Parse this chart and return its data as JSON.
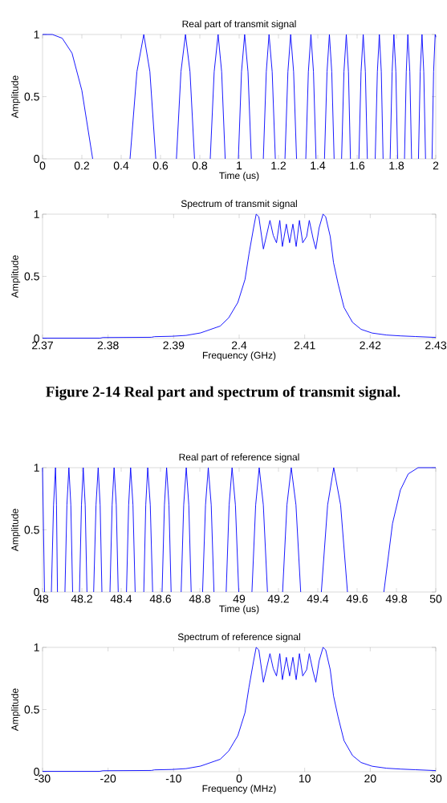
{
  "chart_data": [
    {
      "type": "line",
      "title": "Real part of transmit signal",
      "xlabel": "Time (us)",
      "ylabel": "Amplitude",
      "color": "#0000ff",
      "xlim": [
        0,
        2
      ],
      "ylim": [
        0,
        1
      ],
      "xticks": [
        0,
        0.2,
        0.4,
        0.6,
        0.8,
        1,
        1.2,
        1.4,
        1.6,
        1.8,
        2
      ],
      "yticks": [
        0,
        0.5,
        1
      ],
      "x": [
        0,
        0.05,
        0.1,
        0.15,
        0.2,
        0.255,
        0.35,
        0.445,
        0.48,
        0.515,
        0.546,
        0.576,
        0.63,
        0.681,
        0.704,
        0.727,
        0.75,
        0.773,
        0.81,
        0.853,
        0.873,
        0.893,
        0.911,
        0.929,
        0.96,
        0.996,
        1.012,
        1.028,
        1.045,
        1.062,
        1.09,
        1.123,
        1.138,
        1.152,
        1.168,
        1.184,
        1.21,
        1.233,
        1.248,
        1.262,
        1.277,
        1.292,
        1.315,
        1.339,
        1.352,
        1.365,
        1.378,
        1.391,
        1.41,
        1.434,
        1.447,
        1.459,
        1.471,
        1.483,
        1.5,
        1.521,
        1.533,
        1.545,
        1.556,
        1.566,
        1.59,
        1.609,
        1.62,
        1.631,
        1.642,
        1.652,
        1.67,
        1.692,
        1.703,
        1.713,
        1.723,
        1.732,
        1.75,
        1.768,
        1.778,
        1.787,
        1.797,
        1.806,
        1.82,
        1.841,
        1.85,
        1.858,
        1.868,
        1.877,
        1.89,
        1.912,
        1.921,
        1.93,
        1.939,
        1.948,
        1.96,
        1.981,
        1.989,
        1.997,
        2
      ],
      "values": [
        1,
        1,
        0.97,
        0.85,
        0.55,
        0,
        null,
        0,
        0.7,
        1,
        0.7,
        0,
        null,
        0,
        0.7,
        1,
        0.7,
        0,
        null,
        0,
        0.7,
        1,
        0.7,
        0,
        null,
        0,
        0.7,
        1,
        0.7,
        0,
        null,
        0,
        0.7,
        1,
        0.7,
        0,
        null,
        0,
        0.7,
        1,
        0.7,
        0,
        null,
        0,
        0.7,
        1,
        0.7,
        0,
        null,
        0,
        0.7,
        1,
        0.7,
        0,
        null,
        0,
        0.7,
        1,
        0.7,
        0,
        null,
        0,
        0.7,
        1,
        0.7,
        0,
        null,
        0,
        0.7,
        1,
        0.7,
        0,
        null,
        0,
        0.7,
        1,
        0.7,
        0,
        null,
        0,
        0.7,
        1,
        0.7,
        0,
        null,
        0,
        0.7,
        1,
        0.7,
        0,
        null,
        0,
        0.7,
        1,
        0.98
      ]
    },
    {
      "type": "line",
      "title": "Spectrum of transmit signal",
      "xlabel": "Frequency (GHz)",
      "ylabel": "Amplitude",
      "color": "#0000ff",
      "xlim": [
        2.37,
        2.43
      ],
      "ylim": [
        0,
        1
      ],
      "xticks": [
        2.37,
        2.38,
        2.39,
        2.4,
        2.41,
        2.42,
        2.43
      ],
      "yticks": [
        0,
        0.5,
        1
      ],
      "annotations": [
        "**Figure 2-14 Real part and spectrum of transmit signal.**"
      ],
      "x": [
        2.37,
        2.3788,
        2.3792,
        2.3866,
        2.3871,
        2.3897,
        2.3919,
        2.3941,
        2.3971,
        2.3984,
        2.3998,
        2.4009,
        2.4015,
        2.4022,
        2.4026,
        2.403,
        2.4037,
        2.4047,
        2.4052,
        2.4057,
        2.4062,
        2.4066,
        2.4072,
        2.4077,
        2.4082,
        2.4087,
        2.4092,
        2.4097,
        2.4103,
        2.4107,
        2.4113,
        2.4117,
        2.4122,
        2.4128,
        2.4132,
        2.4139,
        2.4144,
        2.4151,
        2.416,
        2.4173,
        2.4186,
        2.4203,
        2.4225,
        2.4247,
        2.4269,
        2.43
      ],
      "values": [
        0.003,
        0.003,
        0.008,
        0.01,
        0.015,
        0.018,
        0.025,
        0.045,
        0.1,
        0.166,
        0.29,
        0.476,
        0.68,
        0.89,
        1,
        0.98,
        0.72,
        0.95,
        0.83,
        0.77,
        0.95,
        0.74,
        0.92,
        0.77,
        0.92,
        0.74,
        0.95,
        0.77,
        0.82,
        0.95,
        0.8,
        0.72,
        0.89,
        1,
        0.98,
        0.82,
        0.61,
        0.44,
        0.25,
        0.13,
        0.074,
        0.044,
        0.028,
        0.021,
        0.016,
        0.009
      ]
    },
    {
      "type": "line",
      "title": "Real part of reference signal",
      "xlabel": "Time (us)",
      "ylabel": "Amplitude",
      "color": "#0000ff",
      "xlim": [
        48,
        50
      ],
      "ylim": [
        0,
        1
      ],
      "xticks": [
        48,
        48.2,
        48.4,
        48.6,
        48.8,
        49,
        49.2,
        49.4,
        49.6,
        49.8,
        50
      ],
      "yticks": [
        0,
        0.5,
        1
      ],
      "x": [
        48,
        48.01,
        48.03,
        48.045,
        48.056,
        48.066,
        48.071,
        48.076,
        48.095,
        48.114,
        48.124,
        48.134,
        48.144,
        48.153,
        48.17,
        48.188,
        48.198,
        48.207,
        48.217,
        48.226,
        48.243,
        48.26,
        48.272,
        48.283,
        48.293,
        48.302,
        48.32,
        48.343,
        48.354,
        48.364,
        48.375,
        48.385,
        48.405,
        48.427,
        48.438,
        48.448,
        48.46,
        48.471,
        48.49,
        48.515,
        48.525,
        48.535,
        48.548,
        48.56,
        48.585,
        48.608,
        48.62,
        48.631,
        48.643,
        48.654,
        48.68,
        48.705,
        48.718,
        48.731,
        48.744,
        48.756,
        48.785,
        48.814,
        48.829,
        48.843,
        48.858,
        48.872,
        48.9,
        48.934,
        48.949,
        48.964,
        48.981,
        48.998,
        49.03,
        49.065,
        49.084,
        49.102,
        49.123,
        49.144,
        49.18,
        49.221,
        49.243,
        49.265,
        49.289,
        49.313,
        49.36,
        49.418,
        49.45,
        49.481,
        49.516,
        49.551,
        49.64,
        49.736,
        49.78,
        49.82,
        49.86,
        49.91,
        50
      ],
      "values": [
        1,
        0,
        null,
        0,
        0.7,
        1,
        0.7,
        0,
        null,
        0,
        0.7,
        1,
        0.7,
        0,
        null,
        0,
        0.7,
        1,
        0.7,
        0,
        null,
        0,
        0.7,
        1,
        0.7,
        0,
        null,
        0,
        0.7,
        1,
        0.7,
        0,
        null,
        0,
        0.7,
        1,
        0.7,
        0,
        null,
        0,
        0.7,
        1,
        0.7,
        0,
        null,
        0,
        0.7,
        1,
        0.7,
        0,
        null,
        0,
        0.7,
        1,
        0.7,
        0,
        null,
        0,
        0.7,
        1,
        0.7,
        0,
        null,
        0,
        0.7,
        1,
        0.7,
        0,
        null,
        0,
        0.7,
        1,
        0.7,
        0,
        null,
        0,
        0.7,
        1,
        0.7,
        0,
        null,
        0,
        0.7,
        1,
        0.7,
        0,
        null,
        0,
        0.55,
        0.82,
        0.95,
        1,
        1
      ]
    },
    {
      "type": "line",
      "title": "Spectrum of reference signal",
      "xlabel": "Frequency (MHz)",
      "ylabel": "Amplitude",
      "color": "#0000ff",
      "xlim": [
        -30,
        30
      ],
      "ylim": [
        0,
        1
      ],
      "xticks": [
        -30,
        -20,
        -10,
        0,
        10,
        20,
        30
      ],
      "yticks": [
        0,
        0.5,
        1
      ],
      "x": [
        -30,
        -21.3,
        -20.8,
        -13.4,
        -12.9,
        -10.3,
        -8.1,
        -5.9,
        -2.9,
        -1.6,
        -0.2,
        0.9,
        1.5,
        2.2,
        2.6,
        3,
        3.7,
        4.7,
        5.2,
        5.7,
        6.2,
        6.6,
        7.2,
        7.7,
        8.2,
        8.7,
        9.2,
        9.7,
        10.3,
        10.7,
        11.3,
        11.7,
        12.2,
        12.8,
        13.2,
        13.9,
        14.4,
        15.1,
        16,
        17.3,
        18.6,
        20.3,
        22.5,
        24.7,
        26.9,
        30
      ],
      "values": [
        0.003,
        0.003,
        0.008,
        0.01,
        0.015,
        0.018,
        0.025,
        0.045,
        0.1,
        0.166,
        0.29,
        0.476,
        0.68,
        0.89,
        1,
        0.98,
        0.72,
        0.95,
        0.83,
        0.77,
        0.95,
        0.74,
        0.92,
        0.77,
        0.92,
        0.74,
        0.95,
        0.77,
        0.82,
        0.95,
        0.8,
        0.72,
        0.89,
        1,
        0.98,
        0.82,
        0.61,
        0.44,
        0.25,
        0.13,
        0.074,
        0.044,
        0.028,
        0.021,
        0.016,
        0.009
      ]
    }
  ]
}
